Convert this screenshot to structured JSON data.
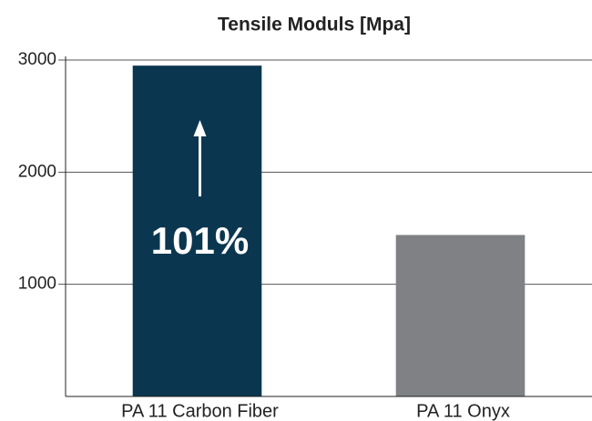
{
  "chart_data": {
    "type": "bar",
    "title": "Tensile Moduls [Mpa]",
    "categories": [
      "PA 11 Carbon Fiber",
      "PA 11 Onyx"
    ],
    "values": [
      2950,
      1440
    ],
    "colors": [
      "#0b3650",
      "#808184"
    ],
    "ylim": [
      0,
      3000
    ],
    "yticks": [
      1000,
      2000,
      3000
    ],
    "grid": true,
    "annotation": "101%"
  }
}
